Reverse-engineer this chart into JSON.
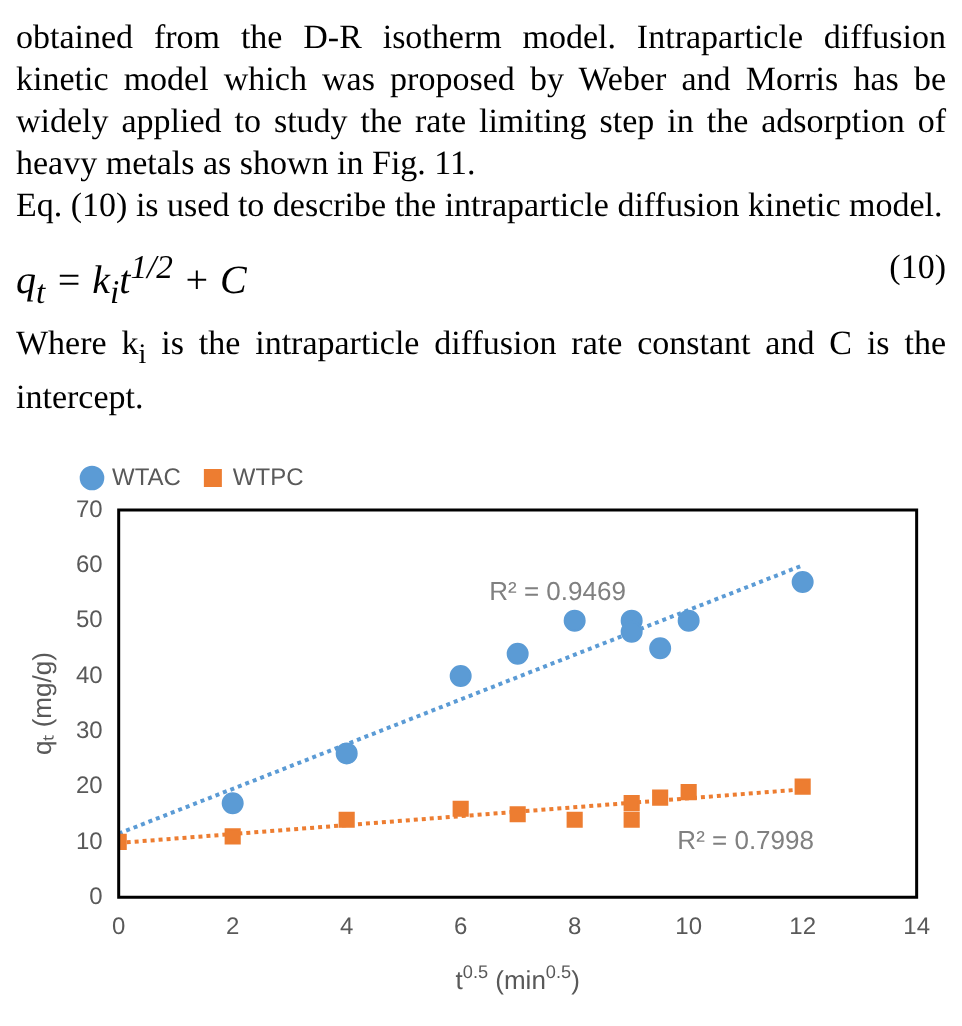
{
  "chart_data": {
    "type": "scatter",
    "xlabel": "t$^{0.5}$ (min$^{0.5}$)",
    "ylabel": "qₜ (mg/g)",
    "annotations": [
      "obtained from the D-R isotherm model. Intraparticle diffusion kinetic model which was proposed by Weber and Morris has be widely applied to study the rate limiting step in the adsorption of heavy metals as shown in Fig. 11.",
      "Eq. (10) is used to describe the intraparticle diffusion kinetic model.",
      "q$_{t}$ = k$_{i}$t$^{1/2}$ + C",
      "(10)",
      "Where k$_{i}$ is the intraparticle diffusion rate constant and C is the intercept.",
      {
        "text": "R² = 0.9469",
        "x": 7.7,
        "y": 42.7
      },
      {
        "text": "R² = 0.7998",
        "x": 11,
        "y": 18.7
      }
    ],
    "series": [
      {
        "name": "WTAC",
        "color": "#5b9bd5",
        "marker": "circle",
        "x": [
          2,
          4,
          6,
          7,
          8,
          9,
          9,
          9.5,
          10,
          12
        ],
        "values": [
          17,
          26,
          40,
          44,
          50,
          50,
          48,
          45,
          50,
          57
        ]
      },
      {
        "name": "WTPC",
        "color": "#ed7d31",
        "marker": "square",
        "x": [
          0,
          2,
          4,
          6,
          7,
          8,
          9,
          9,
          9.5,
          10,
          12
        ],
        "values": [
          10,
          11,
          14,
          16,
          15,
          14,
          17,
          14,
          18,
          19,
          20
        ]
      },
      {
        "type": "line",
        "color": "#5b9bd5",
        "line_style": "dotted",
        "marker": "none",
        "x": [
          0,
          12
        ],
        "values": [
          11.5,
          60
        ]
      },
      {
        "type": "line",
        "color": "#ed7d31",
        "line_style": "dotted",
        "marker": "none",
        "x": [
          0,
          12
        ],
        "values": [
          9.8,
          19.5
        ]
      }
    ],
    "xlim": [
      0,
      14
    ],
    "xticks": [
      0,
      2,
      4,
      6,
      8,
      10,
      12,
      14
    ],
    "ylim": [
      0,
      70
    ],
    "yticks": [
      0,
      10,
      20,
      30,
      40,
      50,
      60,
      70
    ],
    "grid": false,
    "legend": "top left"
  }
}
